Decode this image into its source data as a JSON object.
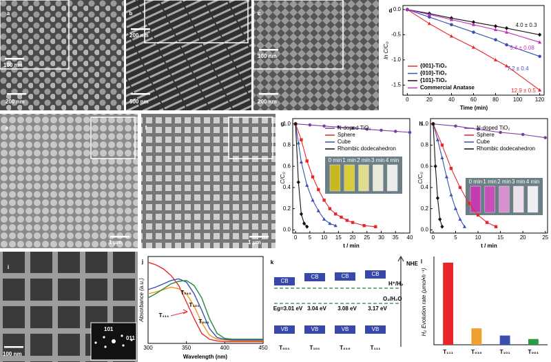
{
  "images": [
    {
      "panel": "a",
      "labels": [
        "100 nm",
        "200 nm"
      ]
    },
    {
      "panel": "b",
      "labels": [
        "200 nm",
        "500 nm"
      ]
    },
    {
      "panel": "c",
      "labels": [
        "100 nm",
        "200 nm"
      ]
    },
    {
      "panel": "e",
      "labels": [
        "1 μm"
      ]
    },
    {
      "panel": "f",
      "labels": [
        "1 μm"
      ]
    },
    {
      "panel": "i",
      "labels": [
        "100 nm",
        "101",
        "011"
      ]
    }
  ],
  "chart_data": [
    {
      "panel": "d",
      "type": "line",
      "x_label": "Time (min)",
      "y_label": "ln C/C₀",
      "xlim": [
        -4,
        124
      ],
      "xticks": [
        0,
        20,
        40,
        60,
        80,
        100,
        120
      ],
      "ylim": [
        -1.7,
        0.08
      ],
      "yticks": [
        {
          "value": 0,
          "label": "0.0"
        },
        -0.5,
        {
          "value": -1,
          "label": "-1.0"
        },
        -1.5
      ],
      "series": [
        {
          "name": "{001}-TiO₂",
          "color": "#e8262a",
          "marker": "triangle",
          "label": "12.9 ± 0.5",
          "x": [
            0,
            20,
            40,
            60,
            80,
            90,
            120
          ],
          "values": [
            0,
            -0.28,
            -0.53,
            -0.75,
            -1.0,
            -1.12,
            -1.6
          ]
        },
        {
          "name": "{010}-TiO₂",
          "color": "#3a4fb0",
          "marker": "circle",
          "label": "7.2 ± 0.4",
          "x": [
            0,
            20,
            40,
            60,
            80,
            90,
            120
          ],
          "values": [
            0,
            -0.15,
            -0.3,
            -0.45,
            -0.6,
            -0.7,
            -0.93
          ]
        },
        {
          "name": "{101}-TiO₂",
          "color": "#111111",
          "marker": "diamond",
          "label": "4.0 ± 0.3",
          "x": [
            0,
            20,
            40,
            60,
            80,
            90,
            120
          ],
          "values": [
            0,
            -0.08,
            -0.17,
            -0.25,
            -0.33,
            -0.37,
            -0.5
          ]
        },
        {
          "name": "Commercial Anatase",
          "color": "#c02ec0",
          "marker": "triangle",
          "label": "5.4 ± 0.08",
          "x": [
            0,
            20,
            40,
            60,
            80,
            90,
            120
          ],
          "values": [
            0,
            -0.1,
            -0.2,
            -0.3,
            -0.4,
            -0.45,
            -0.65
          ]
        }
      ]
    },
    {
      "panel": "g",
      "type": "line",
      "x_label": "t / min",
      "y_label": "C/C₀",
      "xlim": [
        -1,
        40
      ],
      "xticks": [
        0,
        5,
        10,
        15,
        20,
        25,
        30,
        35,
        40
      ],
      "ylim": [
        -0.03,
        1.05
      ],
      "yticks": [
        {
          "value": 0,
          "label": "0.0"
        },
        0.2,
        0.4,
        0.6,
        0.8,
        {
          "value": 1,
          "label": "1.0"
        }
      ],
      "inset_labels": [
        "0 min",
        "1 min",
        "2 min",
        "3 min",
        "4 min"
      ],
      "series": [
        {
          "name": "N-doped TiO₂",
          "color": "#7b3fa0",
          "marker": "circle",
          "x": [
            0,
            5,
            10,
            15,
            20,
            25,
            30,
            35,
            40
          ],
          "values": [
            1,
            0.99,
            0.98,
            0.97,
            0.96,
            0.95,
            0.94,
            0.93,
            0.92
          ]
        },
        {
          "name": "Sphere",
          "color": "#e8262a",
          "marker": "square",
          "x": [
            0,
            2,
            4,
            6,
            8,
            10,
            12,
            14,
            16,
            18,
            20,
            24,
            28
          ],
          "values": [
            1,
            0.85,
            0.65,
            0.5,
            0.38,
            0.28,
            0.2,
            0.15,
            0.12,
            0.09,
            0.07,
            0.04,
            0.03
          ]
        },
        {
          "name": "Cube",
          "color": "#3a4fb0",
          "marker": "triangle",
          "x": [
            0,
            1,
            2,
            4,
            6,
            8,
            10,
            12,
            14
          ],
          "values": [
            1,
            0.82,
            0.64,
            0.42,
            0.28,
            0.18,
            0.1,
            0.06,
            0.04
          ]
        },
        {
          "name": "Rhombic dodecahedron",
          "color": "#111111",
          "marker": "diamond",
          "x": [
            0,
            1,
            2,
            3,
            4
          ],
          "values": [
            1,
            0.45,
            0.15,
            0.06,
            0.03
          ]
        }
      ]
    },
    {
      "panel": "h",
      "type": "line",
      "x_label": "t / min",
      "y_label": "C/C₀",
      "xlim": [
        -0.6,
        25.5
      ],
      "xticks": [
        0,
        5,
        10,
        15,
        20,
        25
      ],
      "ylim": [
        -0.03,
        1.05
      ],
      "yticks": [
        {
          "value": 0,
          "label": "0.0"
        },
        0.2,
        0.4,
        0.6,
        0.8,
        {
          "value": 1,
          "label": "1.0"
        }
      ],
      "inset_labels": [
        "0 min",
        "1 min",
        "2 min",
        "3 min",
        "4 min"
      ],
      "series": [
        {
          "name": "N-doped TiO₂",
          "color": "#7b3fa0",
          "marker": "circle",
          "x": [
            0,
            5,
            10,
            15,
            20,
            25
          ],
          "values": [
            1,
            0.98,
            0.95,
            0.92,
            0.9,
            0.87
          ]
        },
        {
          "name": "Sphere",
          "color": "#e8262a",
          "marker": "square",
          "x": [
            0,
            2,
            4,
            6,
            8,
            10,
            12,
            14
          ],
          "values": [
            1,
            0.8,
            0.58,
            0.4,
            0.25,
            0.14,
            0.07,
            0.03
          ]
        },
        {
          "name": "Cube",
          "color": "#3a4fb0",
          "marker": "triangle",
          "x": [
            0,
            1,
            2,
            3,
            4,
            5,
            6,
            7
          ],
          "values": [
            1,
            0.85,
            0.68,
            0.5,
            0.33,
            0.2,
            0.1,
            0.03
          ]
        },
        {
          "name": "Rhombic dodecahedron",
          "color": "#111111",
          "marker": "diamond",
          "x": [
            0,
            0.5,
            1,
            1.5,
            2
          ],
          "values": [
            1,
            0.6,
            0.3,
            0.1,
            0.03
          ]
        }
      ]
    },
    {
      "panel": "j",
      "type": "line",
      "x_label": "Wavelength (nm)",
      "y_label": "Absorbance (a.u.)",
      "xlim": [
        300,
        450
      ],
      "xticks": [
        300,
        350,
        400,
        450
      ],
      "ylim": [
        0,
        1.05
      ],
      "series": [
        {
          "name": "T₁₁₁",
          "color": "#e8262a",
          "x": [
            300,
            310,
            320,
            330,
            340,
            350,
            360,
            370,
            380,
            390,
            400,
            410,
            420,
            430,
            440,
            450
          ],
          "values": [
            0.98,
            0.95,
            0.9,
            0.82,
            0.7,
            0.5,
            0.3,
            0.12,
            0.05,
            0.03,
            0.02,
            0.02,
            0.02,
            0.02,
            0.02,
            0.02
          ]
        },
        {
          "name": "T₀₁₀",
          "color": "#f0961e",
          "x": [
            300,
            310,
            320,
            330,
            340,
            350,
            360,
            370,
            380,
            390,
            400,
            410,
            420,
            430,
            440,
            450
          ],
          "values": [
            0.6,
            0.62,
            0.65,
            0.68,
            0.66,
            0.6,
            0.45,
            0.25,
            0.1,
            0.05,
            0.04,
            0.03,
            0.03,
            0.03,
            0.03,
            0.03
          ]
        },
        {
          "name": "T₁₀₁",
          "color": "#3a4fb0",
          "x": [
            300,
            310,
            320,
            330,
            340,
            350,
            360,
            370,
            380,
            390,
            400,
            410,
            420,
            430,
            440,
            450
          ],
          "values": [
            0.65,
            0.68,
            0.72,
            0.76,
            0.78,
            0.74,
            0.6,
            0.4,
            0.18,
            0.07,
            0.05,
            0.04,
            0.04,
            0.04,
            0.04,
            0.04
          ]
        },
        {
          "name": "T₀₀₁",
          "color": "#1e8a3c",
          "x": [
            300,
            310,
            320,
            330,
            340,
            350,
            360,
            370,
            380,
            390,
            400,
            410,
            420,
            430,
            440,
            450
          ],
          "values": [
            0.55,
            0.6,
            0.66,
            0.72,
            0.75,
            0.76,
            0.7,
            0.55,
            0.3,
            0.12,
            0.06,
            0.05,
            0.05,
            0.05,
            0.05,
            0.05
          ]
        }
      ]
    },
    {
      "panel": "l",
      "type": "bar",
      "y_label": "H₂ Evolution rate (μmol•h⁻¹)",
      "categories": [
        "T₁₁₁",
        "T₀₁₀",
        "T₁₀₁",
        "T₀₀₁"
      ],
      "values": [
        400,
        80,
        45,
        28
      ],
      "colors": [
        "#e8262a",
        "#f0a030",
        "#3a4fb0",
        "#2a9a44"
      ],
      "ylim": [
        0,
        430
      ]
    }
  ],
  "diagram": {
    "panel": "k",
    "axis_label": "NHE",
    "levels": [
      "H⁺/H₂",
      "O₂/H₂O"
    ],
    "materials": [
      {
        "label": "T₀₀₁",
        "cb": "CB",
        "vb": "VB",
        "gap": "Eg=3.01 eV"
      },
      {
        "label": "T₁₀₁",
        "cb": "CB",
        "vb": "VB",
        "gap": "3.04 eV"
      },
      {
        "label": "T₀₁₀",
        "cb": "CB",
        "vb": "VB",
        "gap": "3.08 eV"
      },
      {
        "label": "T₁₁₁",
        "cb": "CB",
        "vb": "VB",
        "gap": "3.17 eV"
      }
    ]
  }
}
